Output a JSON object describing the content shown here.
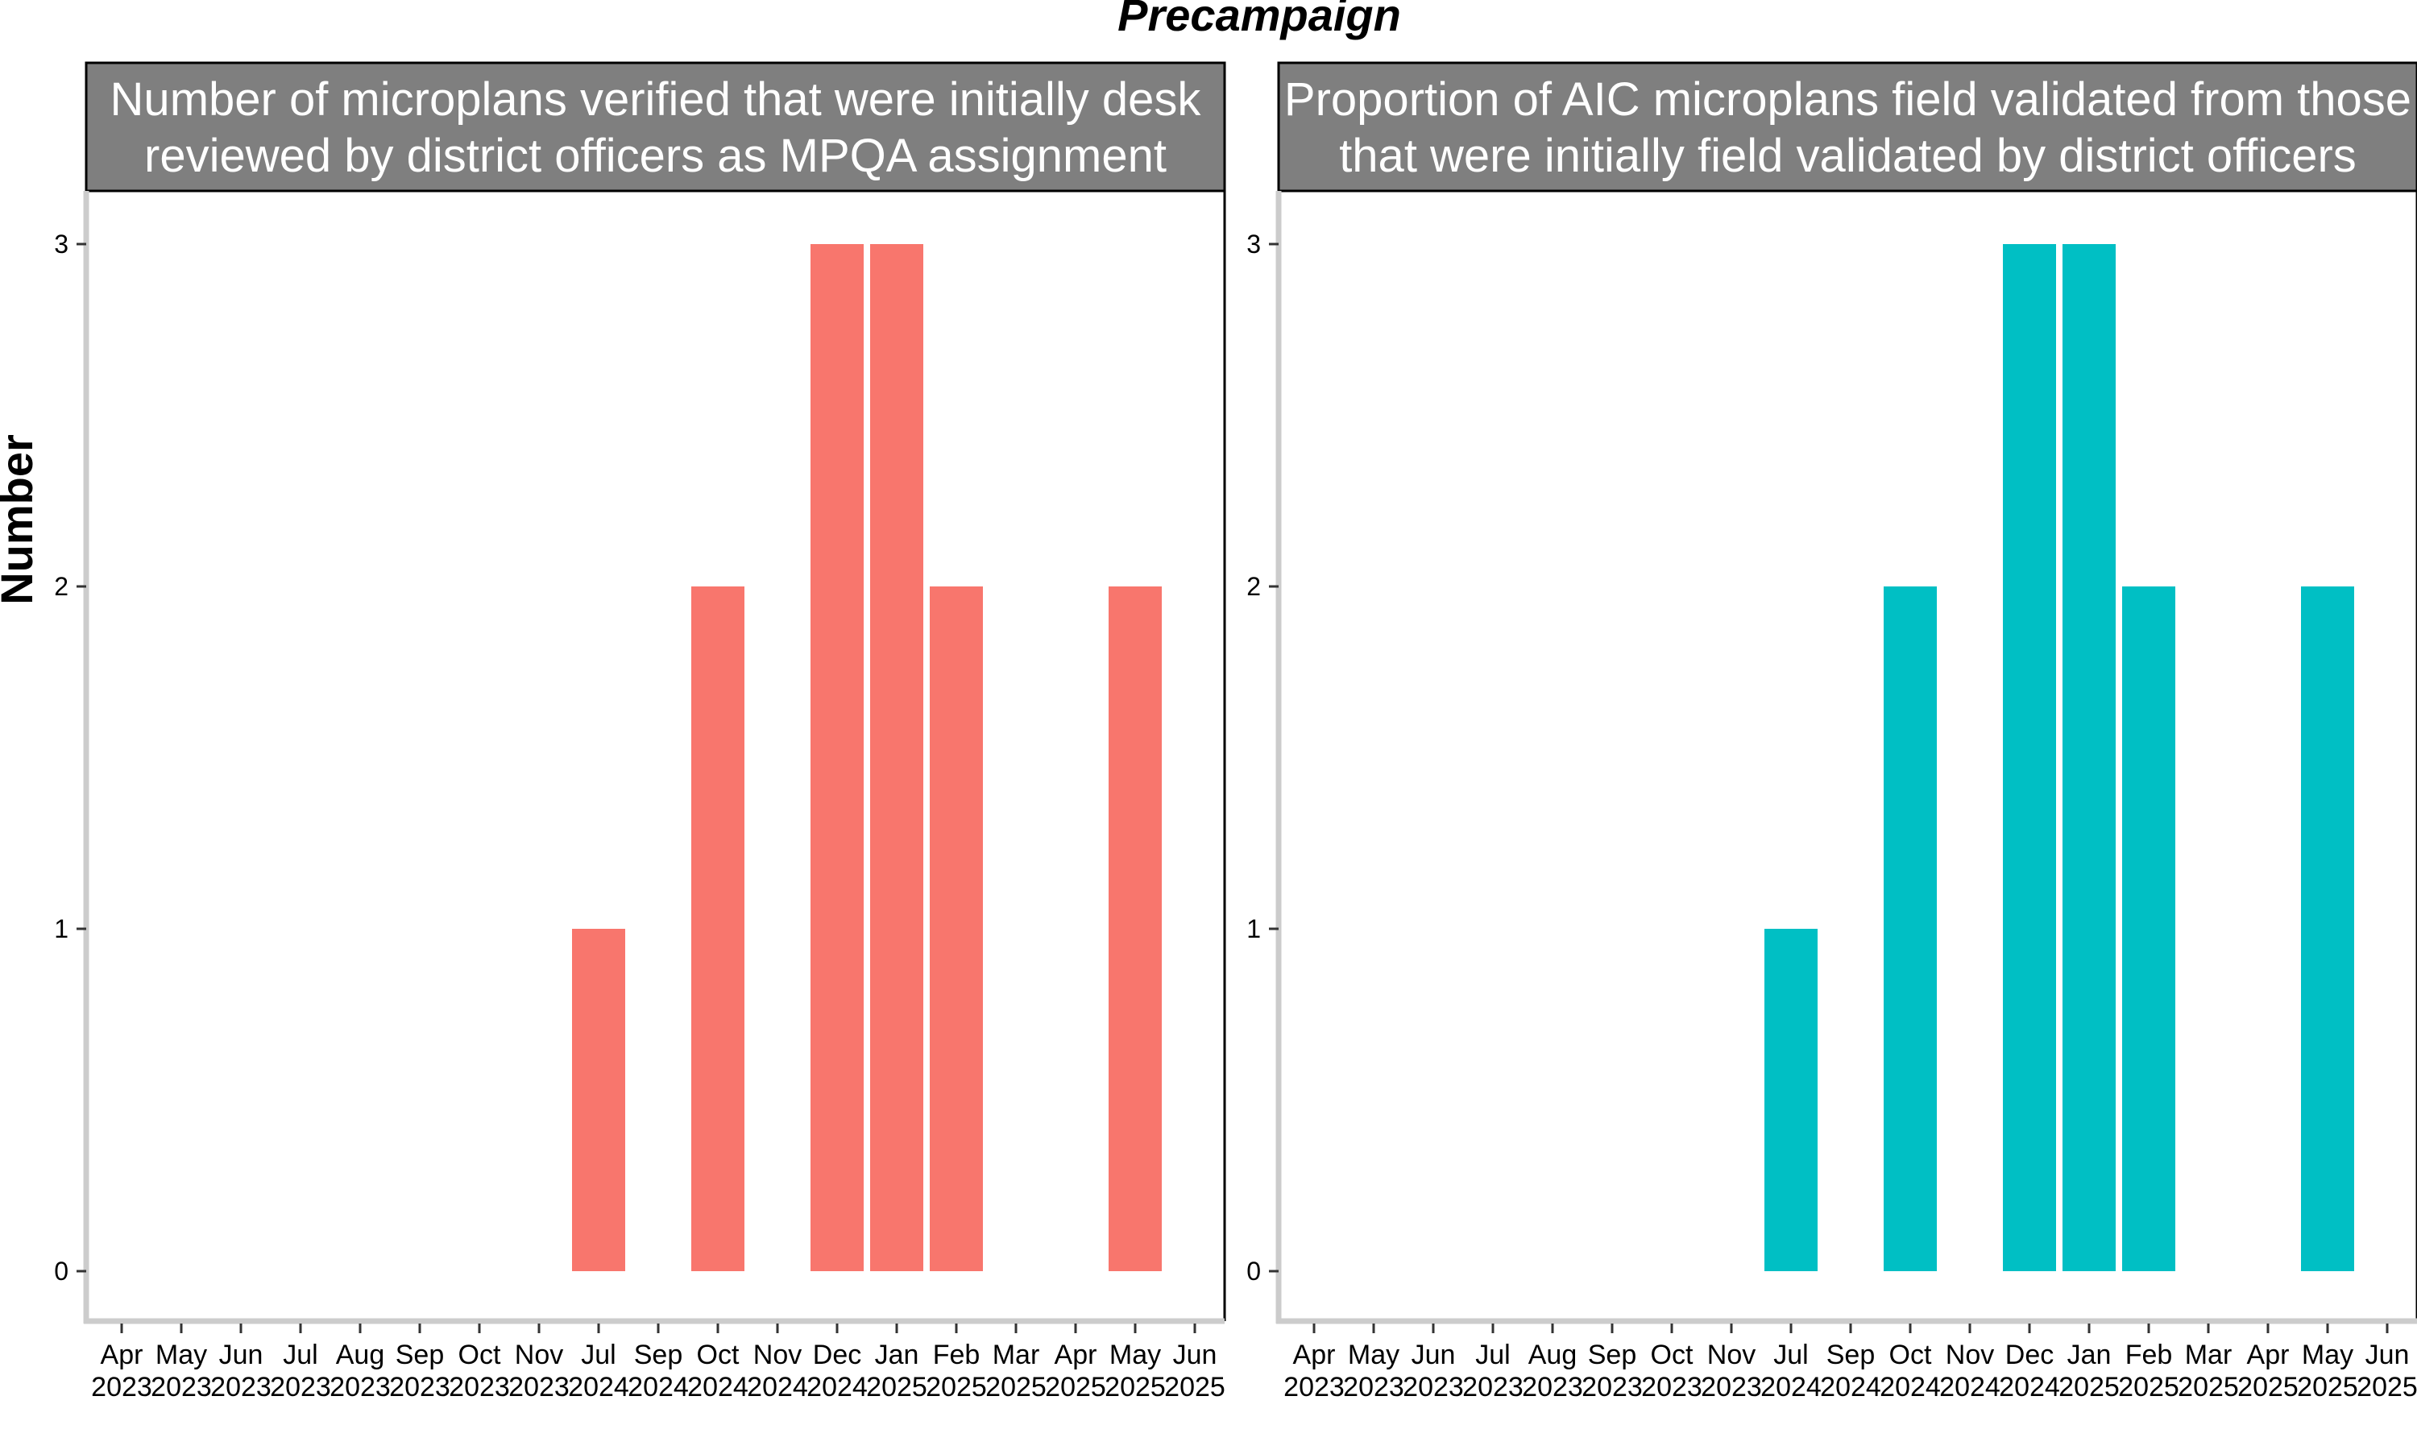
{
  "title": "Precampaign",
  "ylabel": "Number",
  "colors": {
    "panel1": "#F8766D",
    "panel2": "#00BFC4",
    "strip": "#7F7F7F",
    "axis": "#CCCCCC"
  },
  "chart_data": [
    {
      "type": "bar",
      "title_lines": [
        "Number of microplans verified that were initially desk",
        "reviewed by district officers as MPQA assignment"
      ],
      "xlabel": "",
      "ylabel": "Number",
      "ylim": [
        0,
        3
      ],
      "yticks": [
        0,
        1,
        2,
        3
      ],
      "categories": [
        {
          "m": "Apr",
          "y": "2023"
        },
        {
          "m": "May",
          "y": "2023"
        },
        {
          "m": "Jun",
          "y": "2023"
        },
        {
          "m": "Jul",
          "y": "2023"
        },
        {
          "m": "Aug",
          "y": "2023"
        },
        {
          "m": "Sep",
          "y": "2023"
        },
        {
          "m": "Oct",
          "y": "2023"
        },
        {
          "m": "Nov",
          "y": "2023"
        },
        {
          "m": "Jul",
          "y": "2024"
        },
        {
          "m": "Sep",
          "y": "2024"
        },
        {
          "m": "Oct",
          "y": "2024"
        },
        {
          "m": "Nov",
          "y": "2024"
        },
        {
          "m": "Dec",
          "y": "2024"
        },
        {
          "m": "Jan",
          "y": "2025"
        },
        {
          "m": "Feb",
          "y": "2025"
        },
        {
          "m": "Mar",
          "y": "2025"
        },
        {
          "m": "Apr",
          "y": "2025"
        },
        {
          "m": "May",
          "y": "2025"
        },
        {
          "m": "Jun",
          "y": "2025"
        }
      ],
      "values": [
        0,
        0,
        0,
        0,
        0,
        0,
        0,
        0,
        1,
        0,
        2,
        0,
        3,
        3,
        2,
        0,
        0,
        2,
        0
      ],
      "color": "#F8766D",
      "grid": false,
      "legend": "none"
    },
    {
      "type": "bar",
      "title_lines": [
        "Proportion of AIC microplans field validated from those",
        "that were initially field validated by district officers"
      ],
      "xlabel": "",
      "ylabel": "Number",
      "ylim": [
        0,
        3
      ],
      "yticks": [
        0,
        1,
        2,
        3
      ],
      "categories": [
        {
          "m": "Apr",
          "y": "2023"
        },
        {
          "m": "May",
          "y": "2023"
        },
        {
          "m": "Jun",
          "y": "2023"
        },
        {
          "m": "Jul",
          "y": "2023"
        },
        {
          "m": "Aug",
          "y": "2023"
        },
        {
          "m": "Sep",
          "y": "2023"
        },
        {
          "m": "Oct",
          "y": "2023"
        },
        {
          "m": "Nov",
          "y": "2023"
        },
        {
          "m": "Jul",
          "y": "2024"
        },
        {
          "m": "Sep",
          "y": "2024"
        },
        {
          "m": "Oct",
          "y": "2024"
        },
        {
          "m": "Nov",
          "y": "2024"
        },
        {
          "m": "Dec",
          "y": "2024"
        },
        {
          "m": "Jan",
          "y": "2025"
        },
        {
          "m": "Feb",
          "y": "2025"
        },
        {
          "m": "Mar",
          "y": "2025"
        },
        {
          "m": "Apr",
          "y": "2025"
        },
        {
          "m": "May",
          "y": "2025"
        },
        {
          "m": "Jun",
          "y": "2025"
        }
      ],
      "values": [
        0,
        0,
        0,
        0,
        0,
        0,
        0,
        0,
        1,
        0,
        2,
        0,
        3,
        3,
        2,
        0,
        0,
        2,
        0
      ],
      "color": "#00BFC4",
      "grid": false,
      "legend": "none"
    }
  ]
}
